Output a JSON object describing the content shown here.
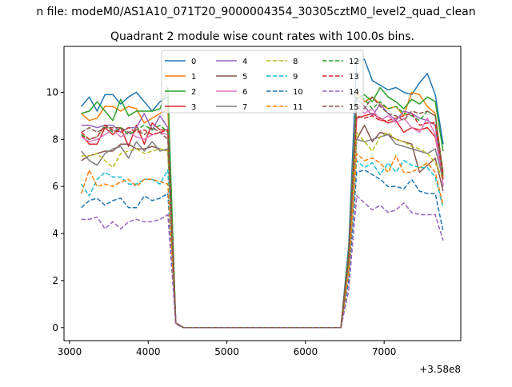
{
  "chart_data": {
    "type": "line",
    "suptitle": "n file: modeM0/AS1A10_071T20_9000004354_30305cztM0_level2_quad_clean",
    "title": "Quadrant 2 module wise count rates with 100.0s bins.",
    "xlabel": "",
    "ylabel": "",
    "x_offset_label": "+3.58e8",
    "xlim": [
      2929,
      7975
    ],
    "ylim": [
      -0.55,
      11.95
    ],
    "xticks": [
      3000,
      4000,
      5000,
      6000,
      7000
    ],
    "xtick_labels": [
      "3000",
      "4000",
      "5000",
      "6000",
      "7000"
    ],
    "yticks": [
      0,
      2,
      4,
      6,
      8,
      10
    ],
    "ytick_labels": [
      "0",
      "2",
      "4",
      "6",
      "8",
      "10"
    ],
    "grid": false,
    "legend_placement": "top-center",
    "legend_columns": 4,
    "x_start": 3150,
    "x_step": 100,
    "series": [
      {
        "name": "0",
        "color": "#1f77b4",
        "dash": false,
        "values": [
          9.4,
          9.8,
          9.2,
          9.9,
          9.9,
          9.5,
          9.8,
          10.0,
          9.6,
          9.2,
          9.6,
          9.8,
          0.2,
          0,
          0,
          0,
          0,
          0,
          0,
          0,
          0,
          0,
          0,
          0,
          0,
          0,
          0,
          0,
          0,
          0,
          0,
          0,
          0,
          0,
          3.5,
          11.3,
          11.4,
          10.5,
          10.3,
          10.1,
          10.2,
          10.0,
          9.9,
          10.4,
          10.8,
          9.9,
          7.8
        ]
      },
      {
        "name": "1",
        "color": "#ff7f0e",
        "dash": false,
        "values": [
          9.1,
          8.8,
          8.9,
          9.4,
          9.4,
          9.2,
          9.4,
          9.3,
          8.7,
          8.9,
          9.1,
          9.3,
          0.2,
          0,
          0,
          0,
          0,
          0,
          0,
          0,
          0,
          0,
          0,
          0,
          0,
          0,
          0,
          0,
          0,
          0,
          0,
          0,
          0,
          0,
          3.2,
          10.0,
          9.6,
          9.8,
          9.5,
          9.3,
          9.4,
          9.0,
          10.0,
          9.9,
          9.4,
          9.1,
          6.5
        ]
      },
      {
        "name": "2",
        "color": "#2ca02c",
        "dash": false,
        "values": [
          9.1,
          9.2,
          9.6,
          9.2,
          8.8,
          9.7,
          9.0,
          9.2,
          9.2,
          9.2,
          9.3,
          10.2,
          0.2,
          0,
          0,
          0,
          0,
          0,
          0,
          0,
          0,
          0,
          0,
          0,
          0,
          0,
          0,
          0,
          0,
          0,
          0,
          0,
          0,
          0,
          3.2,
          9.7,
          9.9,
          9.6,
          10.2,
          9.8,
          9.6,
          9.3,
          9.7,
          9.5,
          9.8,
          9.6,
          7.5
        ]
      },
      {
        "name": "3",
        "color": "#d62728",
        "dash": false,
        "values": [
          8.2,
          7.8,
          7.8,
          8.5,
          8.2,
          8.5,
          7.7,
          8.6,
          7.8,
          8.7,
          8.4,
          8.4,
          0.2,
          0,
          0,
          0,
          0,
          0,
          0,
          0,
          0,
          0,
          0,
          0,
          0,
          0,
          0,
          0,
          0,
          0,
          0,
          0,
          0,
          0,
          3.0,
          8.9,
          9.0,
          9.1,
          8.9,
          8.7,
          8.8,
          8.3,
          8.5,
          8.4,
          8.5,
          8.1,
          6.3
        ]
      },
      {
        "name": "4",
        "color": "#9467bd",
        "dash": false,
        "values": [
          8.6,
          8.6,
          8.5,
          8.6,
          8.6,
          8.3,
          8.5,
          8.5,
          9.1,
          8.4,
          9.0,
          8.5,
          0.2,
          0,
          0,
          0,
          0,
          0,
          0,
          0,
          0,
          0,
          0,
          0,
          0,
          0,
          0,
          0,
          0,
          0,
          0,
          0,
          0,
          0,
          3.0,
          9.7,
          9.4,
          9.0,
          9.5,
          9.1,
          8.8,
          9.2,
          9.1,
          8.9,
          8.8,
          8.6,
          6.0
        ]
      },
      {
        "name": "5",
        "color": "#8c564b",
        "dash": false,
        "values": [
          7.1,
          7.3,
          7.4,
          7.5,
          7.5,
          7.8,
          7.8,
          7.6,
          7.6,
          7.7,
          7.6,
          7.5,
          0.2,
          0,
          0,
          0,
          0,
          0,
          0,
          0,
          0,
          0,
          0,
          0,
          0,
          0,
          0,
          0,
          0,
          0,
          0,
          0,
          0,
          0,
          2.6,
          8.0,
          8.6,
          7.9,
          8.3,
          8.2,
          8.0,
          7.9,
          7.8,
          6.6,
          6.9,
          7.2,
          5.8
        ]
      },
      {
        "name": "6",
        "color": "#e377c2",
        "dash": false,
        "values": [
          8.1,
          7.9,
          8.0,
          8.2,
          8.4,
          8.1,
          8.3,
          8.1,
          8.0,
          8.2,
          8.3,
          8.2,
          0.2,
          0,
          0,
          0,
          0,
          0,
          0,
          0,
          0,
          0,
          0,
          0,
          0,
          0,
          0,
          0,
          0,
          0,
          0,
          0,
          0,
          0,
          2.9,
          9.4,
          9.1,
          9.3,
          8.8,
          9.0,
          8.7,
          8.9,
          8.5,
          8.3,
          8.9,
          8.2,
          6.1
        ]
      },
      {
        "name": "7",
        "color": "#7f7f7f",
        "dash": false,
        "values": [
          7.5,
          7.1,
          6.9,
          7.4,
          7.6,
          7.7,
          7.2,
          7.9,
          7.5,
          7.9,
          7.5,
          7.6,
          0.2,
          0,
          0,
          0,
          0,
          0,
          0,
          0,
          0,
          0,
          0,
          0,
          0,
          0,
          0,
          0,
          0,
          0,
          0,
          0,
          0,
          0,
          2.7,
          8.0,
          7.9,
          8.0,
          8.1,
          8.2,
          7.8,
          7.7,
          7.6,
          7.5,
          7.4,
          7.6,
          6.3
        ]
      },
      {
        "name": "8",
        "color": "#bcbd22",
        "dash": true,
        "values": [
          7.3,
          7.3,
          7.4,
          7.1,
          6.8,
          7.4,
          7.5,
          7.6,
          7.4,
          7.5,
          7.6,
          7.5,
          0.2,
          0,
          0,
          0,
          0,
          0,
          0,
          0,
          0,
          0,
          0,
          0,
          0,
          0,
          0,
          0,
          0,
          0,
          0,
          0,
          0,
          0,
          2.6,
          8.3,
          7.9,
          7.5,
          8.1,
          8.3,
          8.0,
          7.9,
          7.7,
          7.6,
          7.4,
          7.0,
          6.3
        ]
      },
      {
        "name": "9",
        "color": "#17becf",
        "dash": true,
        "values": [
          6.1,
          5.6,
          6.3,
          6.6,
          6.4,
          6.4,
          6.1,
          6.1,
          6.3,
          6.3,
          6.1,
          6.7,
          0.2,
          0,
          0,
          0,
          0,
          0,
          0,
          0,
          0,
          0,
          0,
          0,
          0,
          0,
          0,
          0,
          0,
          0,
          0,
          0,
          0,
          0,
          2.3,
          7.1,
          6.8,
          7.0,
          6.5,
          7.0,
          6.6,
          7.1,
          6.9,
          6.8,
          6.8,
          6.4,
          5.1
        ]
      },
      {
        "name": "10",
        "color": "#1f77b4",
        "dash": true,
        "values": [
          5.1,
          5.4,
          5.5,
          5.2,
          5.4,
          5.5,
          5.1,
          5.1,
          5.6,
          5.4,
          5.5,
          5.7,
          0.2,
          0,
          0,
          0,
          0,
          0,
          0,
          0,
          0,
          0,
          0,
          0,
          0,
          0,
          0,
          0,
          0,
          0,
          0,
          0,
          0,
          0,
          2.0,
          6.6,
          6.7,
          6.5,
          6.3,
          6.0,
          6.0,
          5.9,
          6.3,
          5.8,
          5.7,
          5.7,
          4.1
        ]
      },
      {
        "name": "11",
        "color": "#ff7f0e",
        "dash": true,
        "values": [
          5.7,
          6.7,
          6.0,
          6.1,
          6.0,
          6.2,
          6.3,
          6.0,
          6.3,
          6.3,
          6.2,
          6.1,
          0.2,
          0,
          0,
          0,
          0,
          0,
          0,
          0,
          0,
          0,
          0,
          0,
          0,
          0,
          0,
          0,
          0,
          0,
          0,
          0,
          0,
          0,
          2.3,
          7.4,
          7.1,
          7.2,
          7.0,
          6.6,
          7.3,
          6.6,
          6.6,
          6.8,
          7.0,
          6.6,
          5.2
        ]
      },
      {
        "name": "12",
        "color": "#2ca02c",
        "dash": true,
        "values": [
          8.2,
          8.0,
          8.1,
          8.6,
          8.3,
          8.5,
          8.2,
          8.4,
          8.6,
          8.4,
          8.6,
          8.3,
          0.2,
          0,
          0,
          0,
          0,
          0,
          0,
          0,
          0,
          0,
          0,
          0,
          0,
          0,
          0,
          0,
          0,
          0,
          0,
          0,
          0,
          0,
          3.0,
          9.8,
          9.7,
          9.3,
          9.6,
          9.3,
          9.4,
          9.1,
          9.0,
          8.8,
          9.2,
          9.0,
          6.4
        ]
      },
      {
        "name": "13",
        "color": "#d62728",
        "dash": true,
        "values": [
          8.3,
          8.0,
          8.1,
          8.6,
          8.4,
          8.3,
          8.5,
          8.3,
          8.4,
          8.2,
          8.3,
          8.4,
          0.2,
          0,
          0,
          0,
          0,
          0,
          0,
          0,
          0,
          0,
          0,
          0,
          0,
          0,
          0,
          0,
          0,
          0,
          0,
          0,
          0,
          0,
          3.0,
          9.0,
          8.9,
          9.0,
          8.8,
          8.8,
          8.9,
          9.0,
          9.1,
          8.6,
          8.7,
          8.7,
          6.3
        ]
      },
      {
        "name": "14",
        "color": "#9467bd",
        "dash": true,
        "values": [
          4.6,
          4.6,
          4.7,
          4.2,
          4.5,
          4.2,
          4.5,
          4.6,
          4.5,
          4.5,
          4.6,
          4.8,
          0.15,
          0,
          0,
          0,
          0,
          0,
          0,
          0,
          0,
          0,
          0,
          0,
          0,
          0,
          0,
          0,
          0,
          0,
          0,
          0,
          0,
          0,
          1.6,
          5.6,
          5.3,
          5.0,
          5.2,
          4.9,
          5.0,
          5.3,
          4.9,
          4.8,
          4.8,
          4.8,
          3.7
        ]
      },
      {
        "name": "15",
        "color": "#8c564b",
        "dash": true,
        "values": [
          8.3,
          8.5,
          8.3,
          8.5,
          8.5,
          8.5,
          8.3,
          8.4,
          8.2,
          8.5,
          8.3,
          8.0,
          0.2,
          0,
          0,
          0,
          0,
          0,
          0,
          0,
          0,
          0,
          0,
          0,
          0,
          0,
          0,
          0,
          0,
          0,
          0,
          0,
          0,
          0,
          3.0,
          9.5,
          9.3,
          9.8,
          9.4,
          9.1,
          9.0,
          8.8,
          9.2,
          9.1,
          9.2,
          9.0,
          6.6
        ]
      }
    ]
  }
}
